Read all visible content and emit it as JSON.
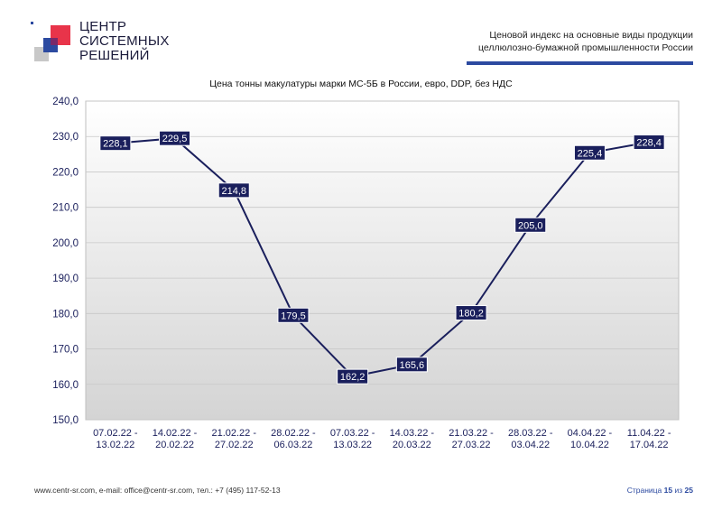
{
  "header": {
    "logo_lines": [
      "ЦЕНТР",
      "СИСТЕМНЫХ",
      "РЕШЕНИЙ"
    ],
    "right_line1": "Ценовой индекс на основные виды продукции",
    "right_line2": "целлюлозно-бумажной промышленности России"
  },
  "footer": {
    "contacts": "www.centr-sr.com, e-mail: office@centr-sr.com, тел.: +7 (495) 117-52-13",
    "page_prefix": "Страница",
    "page_current": "15",
    "page_of": "из",
    "page_total": "25"
  },
  "chart_data": {
    "type": "line",
    "title": "Цена тонны макулатуры марки МС-5Б в России, евро, DDP, без НДС",
    "categories": [
      [
        "07.02.22 -",
        "13.02.22"
      ],
      [
        "14.02.22 -",
        "20.02.22"
      ],
      [
        "21.02.22 -",
        "27.02.22"
      ],
      [
        "28.02.22 -",
        "06.03.22"
      ],
      [
        "07.03.22 -",
        "13.03.22"
      ],
      [
        "14.03.22 -",
        "20.03.22"
      ],
      [
        "21.03.22 -",
        "27.03.22"
      ],
      [
        "28.03.22 -",
        "03.04.22"
      ],
      [
        "04.04.22 -",
        "10.04.22"
      ],
      [
        "11.04.22 -",
        "17.04.22"
      ]
    ],
    "values": [
      228.1,
      229.5,
      214.8,
      179.5,
      162.2,
      165.6,
      180.2,
      205.0,
      225.4,
      228.4
    ],
    "value_labels": [
      "228,1",
      "229,5",
      "214,8",
      "179,5",
      "162,2",
      "165,6",
      "180,2",
      "205,0",
      "225,4",
      "228,4"
    ],
    "ylim": [
      150,
      240
    ],
    "yticks": [
      "150,0",
      "160,0",
      "170,0",
      "180,0",
      "190,0",
      "200,0",
      "210,0",
      "220,0",
      "230,0",
      "240,0"
    ],
    "grid": true,
    "line_color": "#1a1f5c",
    "label_bg": "#1a1f5c",
    "label_text": "#ffffff"
  },
  "colors": {
    "logo_red": "#e8344a",
    "logo_blue": "#2c4aa0",
    "logo_gray": "#bdbdbd",
    "accent_bar": "#2c4aa0"
  }
}
